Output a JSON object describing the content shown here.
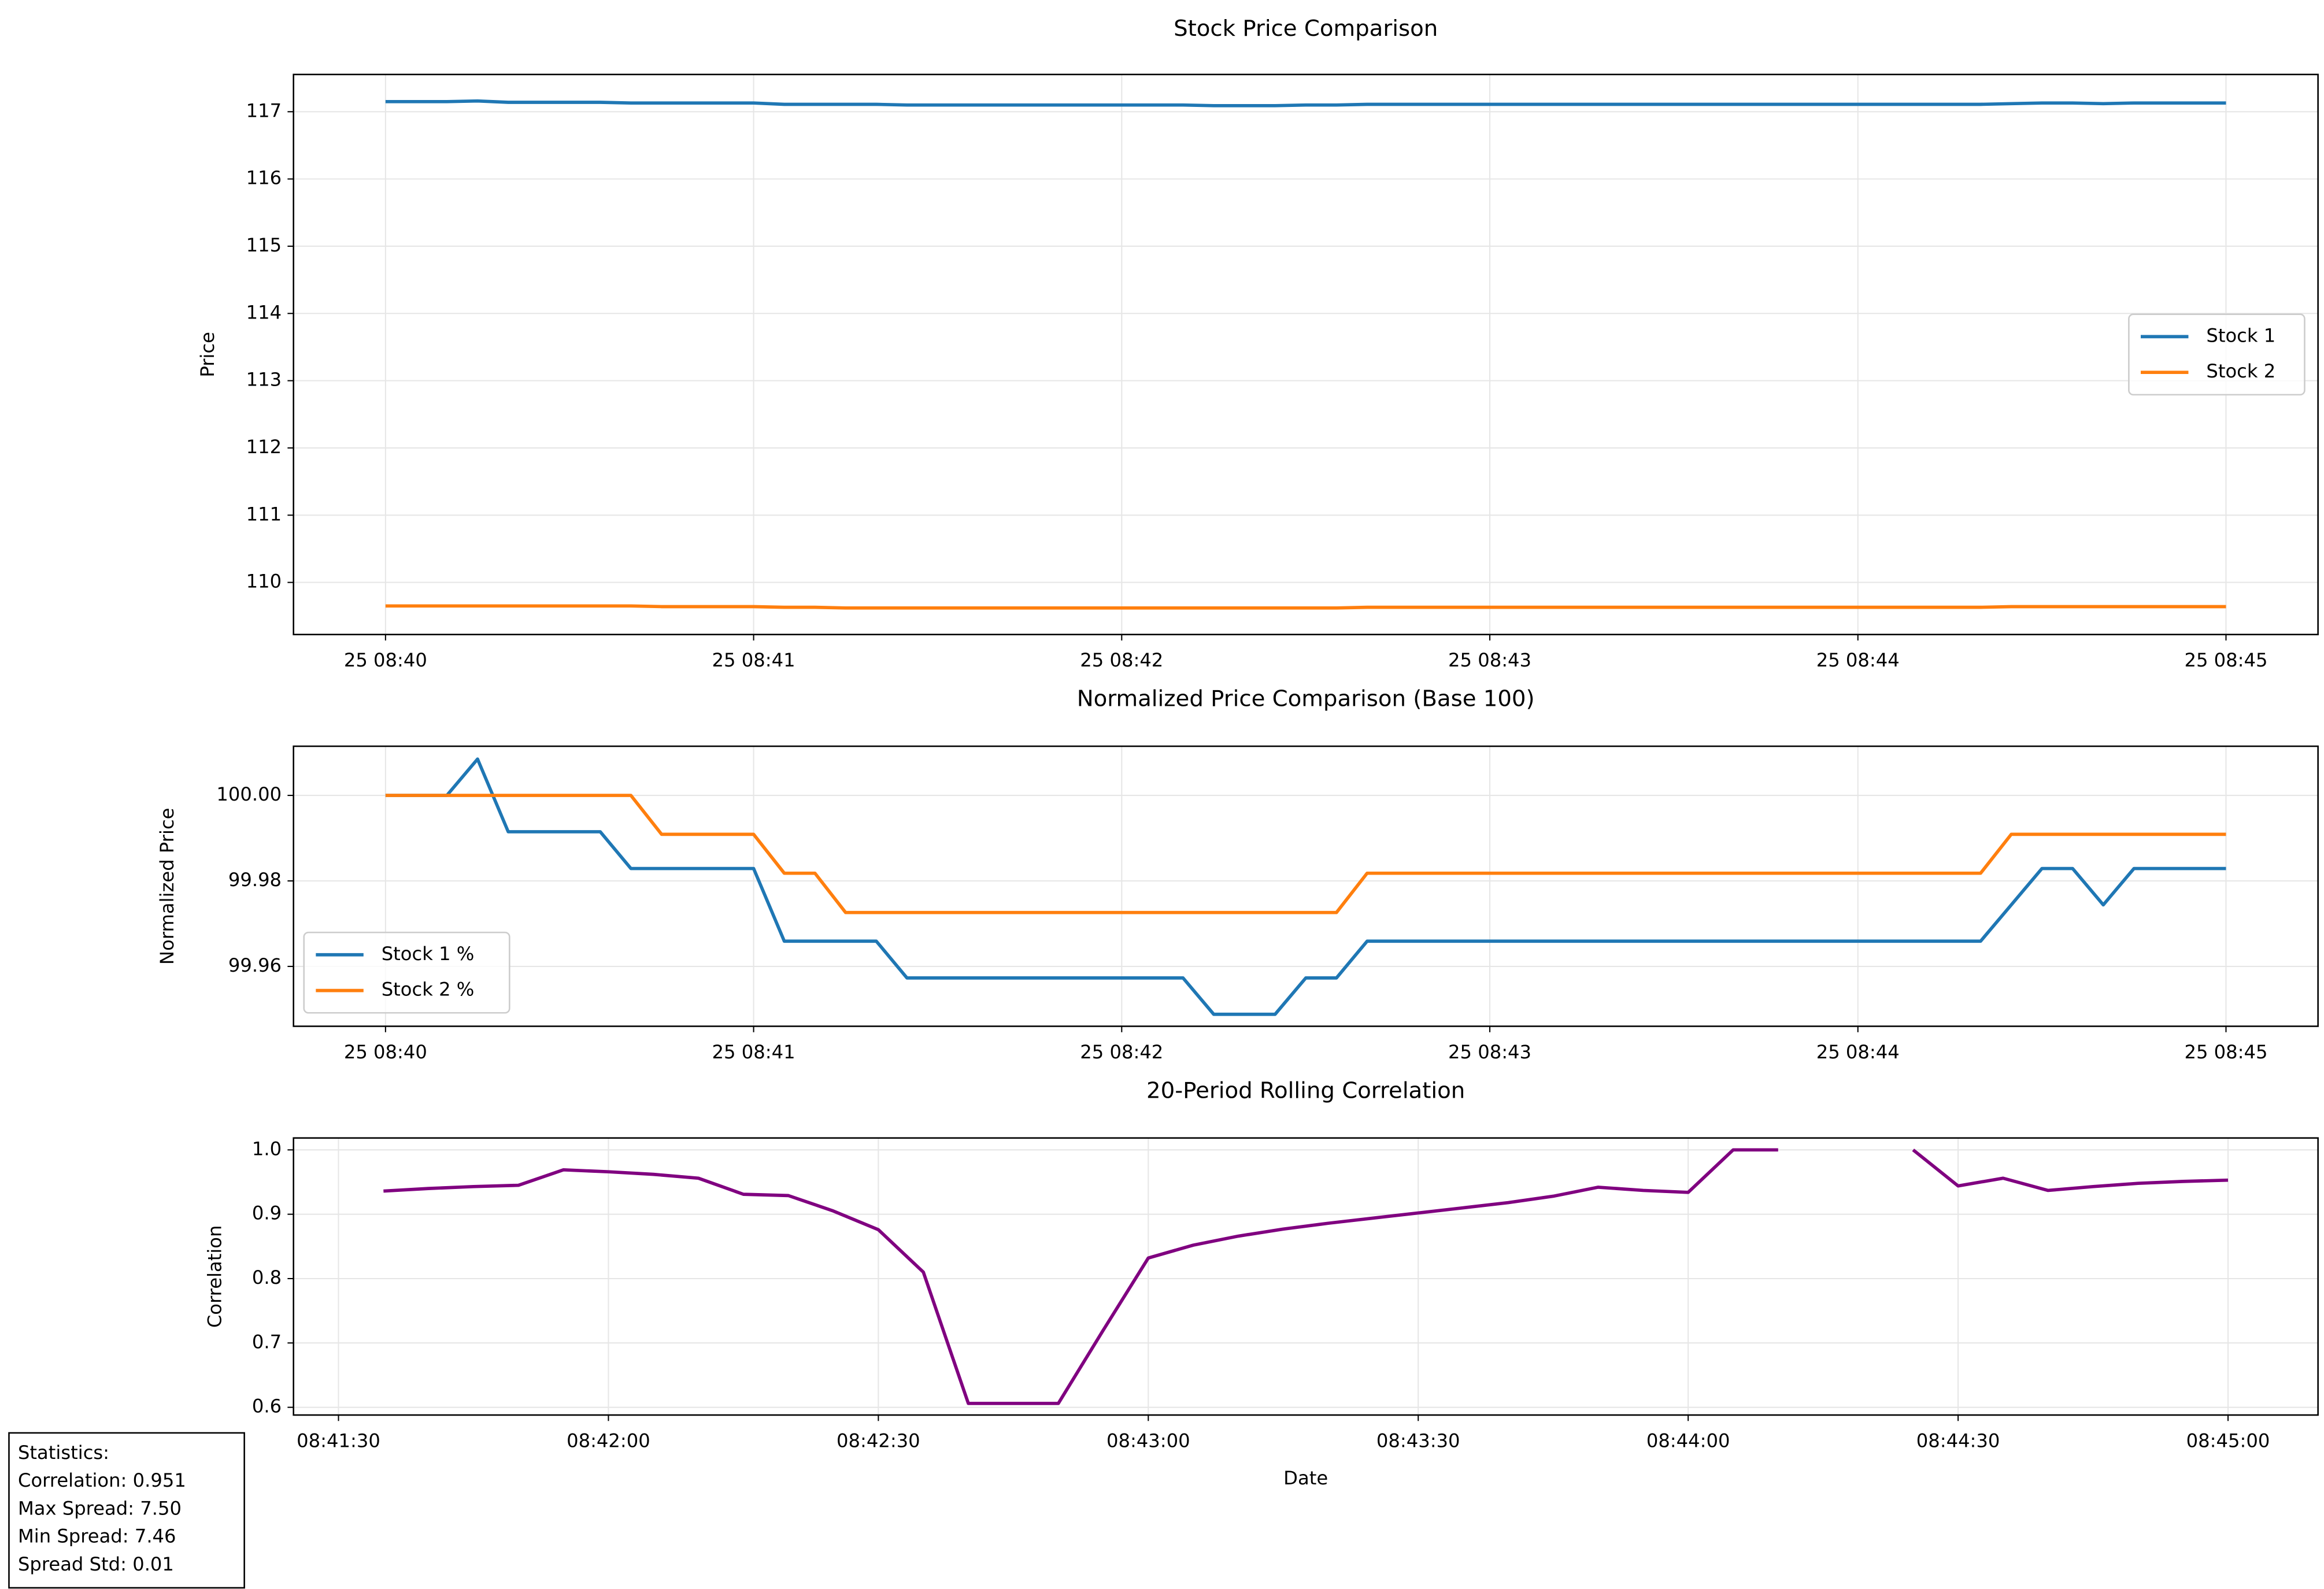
{
  "chart_data": [
    {
      "type": "line",
      "title": "Stock Price Comparison",
      "ylabel": "Price",
      "x": [
        "08:40:00",
        "08:40:05",
        "08:40:10",
        "08:40:15",
        "08:40:20",
        "08:40:25",
        "08:40:30",
        "08:40:35",
        "08:40:40",
        "08:40:45",
        "08:40:50",
        "08:40:55",
        "08:41:00",
        "08:41:05",
        "08:41:10",
        "08:41:15",
        "08:41:20",
        "08:41:25",
        "08:41:30",
        "08:41:35",
        "08:41:40",
        "08:41:45",
        "08:41:50",
        "08:41:55",
        "08:42:00",
        "08:42:05",
        "08:42:10",
        "08:42:15",
        "08:42:20",
        "08:42:25",
        "08:42:30",
        "08:42:35",
        "08:42:40",
        "08:42:45",
        "08:42:50",
        "08:42:55",
        "08:43:00",
        "08:43:05",
        "08:43:10",
        "08:43:15",
        "08:43:20",
        "08:43:25",
        "08:43:30",
        "08:43:35",
        "08:43:40",
        "08:43:45",
        "08:43:50",
        "08:43:55",
        "08:44:00",
        "08:44:05",
        "08:44:10",
        "08:44:15",
        "08:44:20",
        "08:44:25",
        "08:44:30",
        "08:44:35",
        "08:44:40",
        "08:44:45",
        "08:44:50",
        "08:44:55",
        "08:45:00"
      ],
      "series": [
        {
          "name": "Stock 1",
          "color": "#1f77b4",
          "values": [
            117.15,
            117.15,
            117.15,
            117.16,
            117.14,
            117.14,
            117.14,
            117.14,
            117.13,
            117.13,
            117.13,
            117.13,
            117.13,
            117.11,
            117.11,
            117.11,
            117.11,
            117.1,
            117.1,
            117.1,
            117.1,
            117.1,
            117.1,
            117.1,
            117.1,
            117.1,
            117.1,
            117.09,
            117.09,
            117.09,
            117.1,
            117.1,
            117.11,
            117.11,
            117.11,
            117.11,
            117.11,
            117.11,
            117.11,
            117.11,
            117.11,
            117.11,
            117.11,
            117.11,
            117.11,
            117.11,
            117.11,
            117.11,
            117.11,
            117.11,
            117.11,
            117.11,
            117.11,
            117.12,
            117.13,
            117.13,
            117.12,
            117.13,
            117.13,
            117.13,
            117.13
          ]
        },
        {
          "name": "Stock 2",
          "color": "#ff7f0e",
          "values": [
            109.65,
            109.65,
            109.65,
            109.65,
            109.65,
            109.65,
            109.65,
            109.65,
            109.65,
            109.64,
            109.64,
            109.64,
            109.64,
            109.63,
            109.63,
            109.62,
            109.62,
            109.62,
            109.62,
            109.62,
            109.62,
            109.62,
            109.62,
            109.62,
            109.62,
            109.62,
            109.62,
            109.62,
            109.62,
            109.62,
            109.62,
            109.62,
            109.63,
            109.63,
            109.63,
            109.63,
            109.63,
            109.63,
            109.63,
            109.63,
            109.63,
            109.63,
            109.63,
            109.63,
            109.63,
            109.63,
            109.63,
            109.63,
            109.63,
            109.63,
            109.63,
            109.63,
            109.63,
            109.64,
            109.64,
            109.64,
            109.64,
            109.64,
            109.64,
            109.64,
            109.64
          ]
        }
      ],
      "xlim": [
        "08:39:45",
        "08:45:15"
      ],
      "xticks": [
        {
          "value": "08:40:00",
          "label": "25 08:40"
        },
        {
          "value": "08:41:00",
          "label": "25 08:41"
        },
        {
          "value": "08:42:00",
          "label": "25 08:42"
        },
        {
          "value": "08:43:00",
          "label": "25 08:43"
        },
        {
          "value": "08:44:00",
          "label": "25 08:44"
        },
        {
          "value": "08:45:00",
          "label": "25 08:45"
        }
      ],
      "ylim": [
        109.225,
        117.554
      ],
      "yticks": [
        110,
        111,
        112,
        113,
        114,
        115,
        116,
        117
      ],
      "grid": true,
      "legend": "center right"
    },
    {
      "type": "line",
      "title": "Normalized Price Comparison (Base 100)",
      "ylabel": "Normalized Price",
      "x": [
        "08:40:00",
        "08:40:05",
        "08:40:10",
        "08:40:15",
        "08:40:20",
        "08:40:25",
        "08:40:30",
        "08:40:35",
        "08:40:40",
        "08:40:45",
        "08:40:50",
        "08:40:55",
        "08:41:00",
        "08:41:05",
        "08:41:10",
        "08:41:15",
        "08:41:20",
        "08:41:25",
        "08:41:30",
        "08:41:35",
        "08:41:40",
        "08:41:45",
        "08:41:50",
        "08:41:55",
        "08:42:00",
        "08:42:05",
        "08:42:10",
        "08:42:15",
        "08:42:20",
        "08:42:25",
        "08:42:30",
        "08:42:35",
        "08:42:40",
        "08:42:45",
        "08:42:50",
        "08:42:55",
        "08:43:00",
        "08:43:05",
        "08:43:10",
        "08:43:15",
        "08:43:20",
        "08:43:25",
        "08:43:30",
        "08:43:35",
        "08:43:40",
        "08:43:45",
        "08:43:50",
        "08:43:55",
        "08:44:00",
        "08:44:05",
        "08:44:10",
        "08:44:15",
        "08:44:20",
        "08:44:25",
        "08:44:30",
        "08:44:35",
        "08:44:40",
        "08:44:45",
        "08:44:50",
        "08:44:55",
        "08:45:00"
      ],
      "series": [
        {
          "name": "Stock 1 %",
          "color": "#1f77b4",
          "values": [
            100,
            100,
            100,
            100.0085,
            99.9915,
            99.9915,
            99.9915,
            99.9915,
            99.9829,
            99.9829,
            99.9829,
            99.9829,
            99.9829,
            99.9659,
            99.9659,
            99.9659,
            99.9659,
            99.9573,
            99.9573,
            99.9573,
            99.9573,
            99.9573,
            99.9573,
            99.9573,
            99.9573,
            99.9573,
            99.9573,
            99.9488,
            99.9488,
            99.9488,
            99.9573,
            99.9573,
            99.9659,
            99.9659,
            99.9659,
            99.9659,
            99.9659,
            99.9659,
            99.9659,
            99.9659,
            99.9659,
            99.9659,
            99.9659,
            99.9659,
            99.9659,
            99.9659,
            99.9659,
            99.9659,
            99.9659,
            99.9659,
            99.9659,
            99.9659,
            99.9659,
            99.9744,
            99.9829,
            99.9829,
            99.9744,
            99.9829,
            99.9829,
            99.9829,
            99.9829
          ]
        },
        {
          "name": "Stock 2 %",
          "color": "#ff7f0e",
          "values": [
            100,
            100,
            100,
            100,
            100,
            100,
            100,
            100,
            100,
            99.9909,
            99.9909,
            99.9909,
            99.9909,
            99.9818,
            99.9818,
            99.9726,
            99.9726,
            99.9726,
            99.9726,
            99.9726,
            99.9726,
            99.9726,
            99.9726,
            99.9726,
            99.9726,
            99.9726,
            99.9726,
            99.9726,
            99.9726,
            99.9726,
            99.9726,
            99.9726,
            99.9818,
            99.9818,
            99.9818,
            99.9818,
            99.9818,
            99.9818,
            99.9818,
            99.9818,
            99.9818,
            99.9818,
            99.9818,
            99.9818,
            99.9818,
            99.9818,
            99.9818,
            99.9818,
            99.9818,
            99.9818,
            99.9818,
            99.9818,
            99.9818,
            99.9909,
            99.9909,
            99.9909,
            99.9909,
            99.9909,
            99.9909,
            99.9909,
            99.9909
          ]
        }
      ],
      "xlim": [
        "08:39:45",
        "08:45:15"
      ],
      "xticks": [
        {
          "value": "08:40:00",
          "label": "25 08:40"
        },
        {
          "value": "08:41:00",
          "label": "25 08:41"
        },
        {
          "value": "08:42:00",
          "label": "25 08:42"
        },
        {
          "value": "08:43:00",
          "label": "25 08:43"
        },
        {
          "value": "08:44:00",
          "label": "25 08:44"
        },
        {
          "value": "08:45:00",
          "label": "25 08:45"
        }
      ],
      "ylim": [
        99.946,
        100.0115
      ],
      "yticks": [
        99.96,
        99.98,
        {
          "value": 100,
          "label": "100.00"
        }
      ],
      "grid": true,
      "legend": "lower left"
    },
    {
      "type": "line",
      "title": "20-Period Rolling Correlation",
      "ylabel": "Correlation",
      "xlabel": "Date",
      "x": [
        "08:41:35",
        "08:41:40",
        "08:41:45",
        "08:41:50",
        "08:41:55",
        "08:42:00",
        "08:42:05",
        "08:42:10",
        "08:42:15",
        "08:42:20",
        "08:42:25",
        "08:42:30",
        "08:42:35",
        "08:42:40",
        "08:42:45",
        "08:42:50",
        "08:42:55",
        "08:43:00",
        "08:43:05",
        "08:43:10",
        "08:43:15",
        "08:43:20",
        "08:43:25",
        "08:43:30",
        "08:43:35",
        "08:43:40",
        "08:43:45",
        "08:43:50",
        "08:43:55",
        "08:44:00",
        "08:44:05",
        "08:44:10",
        "08:44:15",
        "08:44:20",
        "08:44:25",
        "08:44:30",
        "08:44:35",
        "08:44:40",
        "08:44:45",
        "08:44:50",
        "08:44:55",
        "08:45:00"
      ],
      "series": [
        {
          "name": "Correlation",
          "color": "#800080",
          "values": [
            0.936,
            0.94,
            0.943,
            0.945,
            0.969,
            0.966,
            0.962,
            0.956,
            0.931,
            0.929,
            0.905,
            0.876,
            0.81,
            0.606,
            0.606,
            0.606,
            0.72,
            0.832,
            0.852,
            0.866,
            0.877,
            0.886,
            0.894,
            0.902,
            0.91,
            0.918,
            0.928,
            0.942,
            0.937,
            0.934,
            1.0,
            1.0,
            null,
            null,
            1.0,
            0.944,
            0.956,
            0.937,
            0.943,
            0.948,
            0.951,
            0.953
          ]
        }
      ],
      "xlim": [
        "08:41:25",
        "08:45:10"
      ],
      "xticks": [
        "08:41:30",
        "08:42:00",
        "08:42:30",
        "08:43:00",
        "08:43:30",
        "08:44:00",
        "08:44:30",
        "08:45:00"
      ],
      "ylim": [
        0.588,
        1.0185
      ],
      "yticks": [
        0.6,
        0.7,
        0.8,
        0.9,
        {
          "value": 1,
          "label": "1.0"
        }
      ],
      "grid": true
    }
  ],
  "statistics": [
    "Statistics:",
    "Correlation: 0.951",
    "Max Spread: 7.50",
    "Min Spread: 7.46",
    "Spread Std: 0.01"
  ]
}
